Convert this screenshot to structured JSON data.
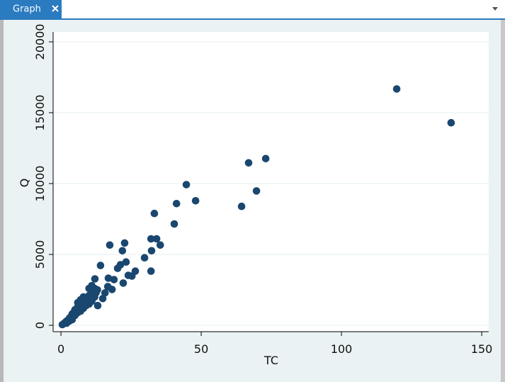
{
  "window": {
    "tab": "Graph"
  },
  "chart_data": {
    "type": "scatter",
    "xlabel": "TC",
    "ylabel": "Q",
    "color": "#1a476f",
    "grid": true,
    "xlim": [
      -2.8,
      152.5
    ],
    "ylim": [
      -450,
      20700
    ],
    "xticks": [
      0,
      50,
      100,
      150
    ],
    "yticks": [
      0,
      5000,
      10000,
      15000,
      20000
    ],
    "x": [
      119.7,
      139.1,
      73.0,
      66.9,
      44.7,
      69.7,
      48.0,
      41.2,
      64.4,
      33.3,
      40.4,
      22.7,
      17.4,
      32.1,
      34.1,
      35.4,
      21.9,
      32.3,
      29.8,
      23.2,
      14.1,
      21.2,
      20.2,
      26.5,
      32.1,
      24.0,
      25.3,
      12.1,
      16.9,
      18.9,
      22.2,
      16.7,
      18.2,
      15.7,
      14.9,
      13.1,
      0.5,
      1,
      1.5,
      2,
      2.5,
      3,
      3.5,
      4,
      4.5,
      5,
      5,
      5.5,
      6,
      6,
      6.5,
      7,
      7,
      7.5,
      8,
      8,
      8.5,
      9,
      9,
      9.5,
      10,
      10,
      10.5,
      11,
      11,
      11.5,
      12,
      12,
      12.5,
      13,
      11,
      10,
      4,
      3,
      2,
      6,
      8,
      7
    ],
    "y": [
      16675,
      14290,
      11760,
      11460,
      9925,
      9480,
      8785,
      8585,
      8390,
      7890,
      7150,
      5805,
      5660,
      6100,
      6100,
      5660,
      5260,
      5260,
      4765,
      4465,
      4220,
      4270,
      4020,
      3820,
      3820,
      3525,
      3475,
      3275,
      3325,
      3225,
      2980,
      2730,
      2530,
      2285,
      1885,
      1390,
      50,
      120,
      200,
      300,
      350,
      500,
      600,
      800,
      900,
      1100,
      700,
      1000,
      1300,
      900,
      1200,
      1500,
      1000,
      1400,
      1700,
      1200,
      1600,
      1900,
      1400,
      1800,
      2100,
      1500,
      2000,
      2400,
      1700,
      2200,
      2600,
      2000,
      2300,
      2500,
      2800,
      2600,
      400,
      300,
      150,
      1600,
      2000,
      1800
    ]
  }
}
